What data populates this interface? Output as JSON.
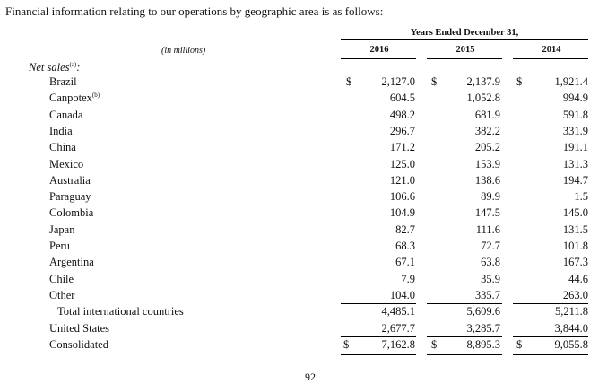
{
  "intro": "Financial information relating to our operations by geographic area is as follows:",
  "header": {
    "years_label": "Years Ended December 31,",
    "columns": [
      "2016",
      "2015",
      "2014"
    ],
    "unit": "(in millions)"
  },
  "section": {
    "label": "Net sales",
    "footnote": "(a)"
  },
  "currency_symbol": "$",
  "rows": [
    {
      "label": "Brazil",
      "note": "",
      "v2016": "2,127.0",
      "v2015": "2,137.9",
      "v2014": "1,921.4"
    },
    {
      "label": "Canpotex",
      "note": "(b)",
      "v2016": "604.5",
      "v2015": "1,052.8",
      "v2014": "994.9"
    },
    {
      "label": "Canada",
      "note": "",
      "v2016": "498.2",
      "v2015": "681.9",
      "v2014": "591.8"
    },
    {
      "label": "India",
      "note": "",
      "v2016": "296.7",
      "v2015": "382.2",
      "v2014": "331.9"
    },
    {
      "label": "China",
      "note": "",
      "v2016": "171.2",
      "v2015": "205.2",
      "v2014": "191.1"
    },
    {
      "label": "Mexico",
      "note": "",
      "v2016": "125.0",
      "v2015": "153.9",
      "v2014": "131.3"
    },
    {
      "label": "Australia",
      "note": "",
      "v2016": "121.0",
      "v2015": "138.6",
      "v2014": "194.7"
    },
    {
      "label": "Paraguay",
      "note": "",
      "v2016": "106.6",
      "v2015": "89.9",
      "v2014": "1.5"
    },
    {
      "label": "Colombia",
      "note": "",
      "v2016": "104.9",
      "v2015": "147.5",
      "v2014": "145.0"
    },
    {
      "label": "Japan",
      "note": "",
      "v2016": "82.7",
      "v2015": "111.6",
      "v2014": "131.5"
    },
    {
      "label": "Peru",
      "note": "",
      "v2016": "68.3",
      "v2015": "72.7",
      "v2014": "101.8"
    },
    {
      "label": "Argentina",
      "note": "",
      "v2016": "67.1",
      "v2015": "63.8",
      "v2014": "167.3"
    },
    {
      "label": "Chile",
      "note": "",
      "v2016": "7.9",
      "v2015": "35.9",
      "v2014": "44.6"
    },
    {
      "label": "Other",
      "note": "",
      "v2016": "104.0",
      "v2015": "335.7",
      "v2014": "263.0"
    },
    {
      "label": "Total international countries",
      "note": "",
      "v2016": "4,485.1",
      "v2015": "5,609.6",
      "v2014": "5,211.8"
    },
    {
      "label": "United States",
      "note": "",
      "v2016": "2,677.7",
      "v2015": "3,285.7",
      "v2014": "3,844.0"
    },
    {
      "label": "Consolidated",
      "note": "",
      "v2016": "7,162.8",
      "v2015": "8,895.3",
      "v2014": "9,055.8"
    }
  ],
  "page_number": "92"
}
